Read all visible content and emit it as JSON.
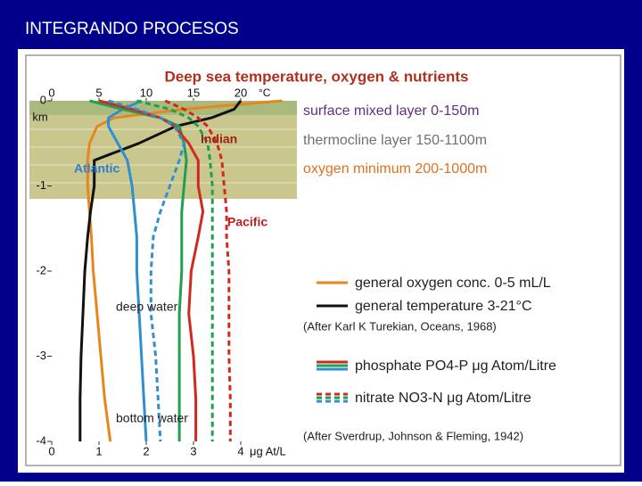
{
  "header": {
    "title": "INTEGRANDO PROCESOS"
  },
  "chart_data": {
    "type": "line",
    "title": "Deep sea temperature, oxygen & nutrients",
    "depths": [
      0,
      -0.1,
      -0.2,
      -0.3,
      -0.5,
      -0.7,
      -1,
      -1.3,
      -1.6,
      -2,
      -2.5,
      -3,
      -3.5,
      -4
    ],
    "ylim": [
      -4,
      0
    ],
    "yticks": [
      0,
      -1,
      -2,
      -3,
      -4
    ],
    "y_unit": "km",
    "xlim": [
      0,
      4
    ],
    "xticks": [
      0,
      1,
      2,
      3,
      4
    ],
    "x_unit": "μg At/L",
    "x2lim": [
      0,
      20
    ],
    "x2ticks": [
      0,
      5,
      10,
      15,
      20
    ],
    "x2_unit": "°C",
    "x3lim": [
      0,
      5
    ],
    "series": [
      {
        "axis": "x3",
        "color": "#e8861e",
        "dashed": false,
        "values": [
          6.1,
          3.5,
          1.65,
          1.2,
          1.0,
          0.95,
          0.95,
          1.0,
          1.05,
          1.1,
          1.2,
          1.3,
          1.4,
          1.55
        ]
      },
      {
        "axis": "x2",
        "color": "#111111",
        "dashed": false,
        "values": [
          20,
          19.3,
          16.9,
          13.1,
          9.2,
          4.5,
          4.5,
          4.1,
          3.8,
          3.5,
          3.3,
          3.1,
          3.0,
          3.0
        ]
      },
      {
        "axis": "x",
        "color": "#2f8fd0",
        "dashed": false,
        "values": [
          1.9,
          1.5,
          1.2,
          1.2,
          1.4,
          1.6,
          1.7,
          1.75,
          1.8,
          1.8,
          1.85,
          1.9,
          1.95,
          2.0
        ]
      },
      {
        "axis": "x",
        "color": "#1fa050",
        "dashed": false,
        "values": [
          0.8,
          1.5,
          2.3,
          2.7,
          2.8,
          2.85,
          2.8,
          2.75,
          2.75,
          2.75,
          2.7,
          2.7,
          2.7,
          2.7
        ]
      },
      {
        "axis": "x",
        "color": "#d02a20",
        "dashed": false,
        "values": [
          1.0,
          1.7,
          2.3,
          2.6,
          2.9,
          3.1,
          3.1,
          3.2,
          3.1,
          2.95,
          2.9,
          3.0,
          3.05,
          3.05
        ]
      },
      {
        "axis": "x",
        "color": "#2f8fd0",
        "dashed": true,
        "values": [
          1.2,
          1.8,
          2.3,
          2.6,
          2.8,
          2.7,
          2.5,
          2.3,
          2.15,
          2.1,
          2.1,
          2.2,
          2.25,
          2.3
        ]
      },
      {
        "axis": "x",
        "color": "#1fa050",
        "dashed": true,
        "values": [
          1.8,
          2.5,
          2.9,
          3.1,
          3.3,
          3.35,
          3.4,
          3.4,
          3.4,
          3.4,
          3.4,
          3.4,
          3.4,
          3.4
        ]
      },
      {
        "axis": "x",
        "color": "#d02a20",
        "dashed": true,
        "values": [
          2.4,
          2.8,
          3.1,
          3.3,
          3.5,
          3.6,
          3.65,
          3.7,
          3.7,
          3.75,
          3.75,
          3.75,
          3.78,
          3.78
        ]
      }
    ],
    "annotations": [
      {
        "text": "Indian",
        "color": "#a02018"
      },
      {
        "text": "Atlantic",
        "color": "#2f7fd0"
      },
      {
        "text": "Pacific",
        "color": "#c02020"
      },
      {
        "text": "deep water",
        "color": "#222222"
      },
      {
        "text": "bottom water",
        "color": "#222222"
      },
      {
        "text": "surface mixed layer 0-150m",
        "color": "#603080"
      },
      {
        "text": "thermocline layer 150-1100m",
        "color": "#707070"
      },
      {
        "text": "oxygen minimum 200-1000m",
        "color": "#e07020"
      }
    ],
    "legend": [
      {
        "name": "general oxygen conc. 0-5 mL/L",
        "colors": [
          "#e8861e"
        ],
        "dashed": false
      },
      {
        "name": "general temperature 3-21°C",
        "colors": [
          "#111111"
        ],
        "dashed": false
      },
      {
        "name": "phosphate PO4-P μg Atom/Litre",
        "colors": [
          "#d02a20",
          "#1fa050",
          "#2f8fd0"
        ],
        "dashed": false
      },
      {
        "name": "nitrate NO3-N μg Atom/Litre",
        "colors": [
          "#d02a20",
          "#1fa050",
          "#2f8fd0"
        ],
        "dashed": true
      }
    ],
    "notes": [
      "(After Karl K Turekian, Oceans, 1968)",
      "(After Sverdrup, Johnson & Fleming, 1942)"
    ]
  }
}
